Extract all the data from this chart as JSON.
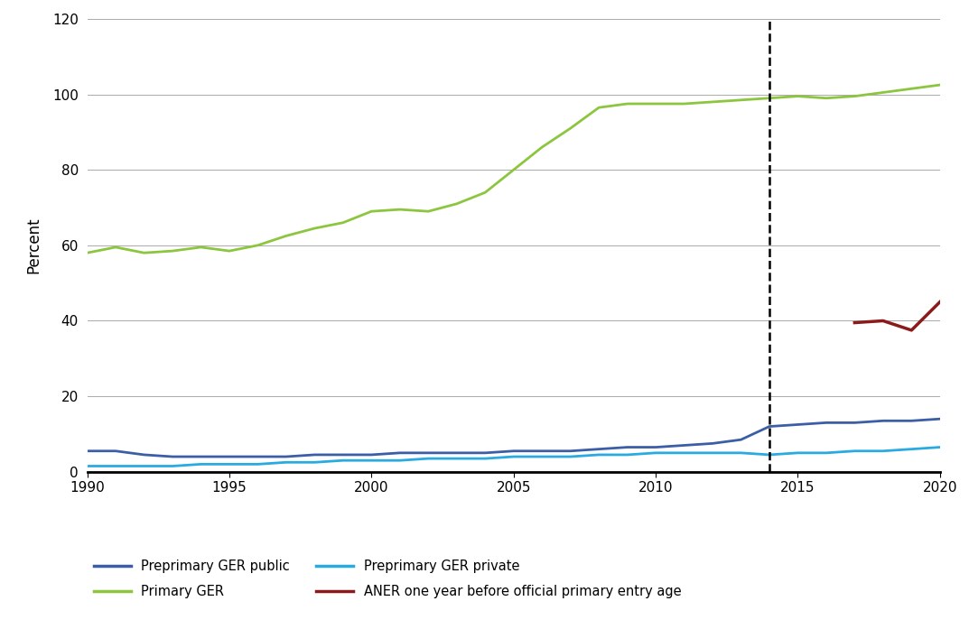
{
  "primary_ger": {
    "years": [
      1990,
      1991,
      1992,
      1993,
      1994,
      1995,
      1996,
      1997,
      1998,
      1999,
      2000,
      2001,
      2002,
      2003,
      2004,
      2005,
      2006,
      2007,
      2008,
      2009,
      2010,
      2011,
      2012,
      2013,
      2014,
      2015,
      2016,
      2017,
      2018,
      2019,
      2020
    ],
    "values": [
      58.0,
      59.5,
      58.0,
      58.5,
      59.5,
      58.5,
      60.0,
      62.5,
      64.5,
      66.0,
      69.0,
      69.5,
      69.0,
      71.0,
      74.0,
      80.0,
      86.0,
      91.0,
      96.5,
      97.5,
      97.5,
      97.5,
      98.0,
      98.5,
      99.0,
      99.5,
      99.0,
      99.5,
      100.5,
      101.5,
      102.5
    ],
    "color": "#8cc63f"
  },
  "preprimary_ger_public": {
    "years": [
      1990,
      1991,
      1992,
      1993,
      1994,
      1995,
      1996,
      1997,
      1998,
      1999,
      2000,
      2001,
      2002,
      2003,
      2004,
      2005,
      2006,
      2007,
      2008,
      2009,
      2010,
      2011,
      2012,
      2013,
      2014,
      2015,
      2016,
      2017,
      2018,
      2019,
      2020
    ],
    "values": [
      5.5,
      5.5,
      4.5,
      4.0,
      4.0,
      4.0,
      4.0,
      4.0,
      4.5,
      4.5,
      4.5,
      5.0,
      5.0,
      5.0,
      5.0,
      5.5,
      5.5,
      5.5,
      6.0,
      6.5,
      6.5,
      7.0,
      7.5,
      8.5,
      12.0,
      12.5,
      13.0,
      13.0,
      13.5,
      13.5,
      14.0
    ],
    "color": "#3b5ea6"
  },
  "preprimary_ger_private": {
    "years": [
      1990,
      1991,
      1992,
      1993,
      1994,
      1995,
      1996,
      1997,
      1998,
      1999,
      2000,
      2001,
      2002,
      2003,
      2004,
      2005,
      2006,
      2007,
      2008,
      2009,
      2010,
      2011,
      2012,
      2013,
      2014,
      2015,
      2016,
      2017,
      2018,
      2019,
      2020
    ],
    "values": [
      1.5,
      1.5,
      1.5,
      1.5,
      2.0,
      2.0,
      2.0,
      2.5,
      2.5,
      3.0,
      3.0,
      3.0,
      3.5,
      3.5,
      3.5,
      4.0,
      4.0,
      4.0,
      4.5,
      4.5,
      5.0,
      5.0,
      5.0,
      5.0,
      4.5,
      5.0,
      5.0,
      5.5,
      5.5,
      6.0,
      6.5
    ],
    "color": "#29abe2"
  },
  "aner": {
    "years": [
      2017,
      2018,
      2019,
      2020
    ],
    "values": [
      39.5,
      40.0,
      37.5,
      45.0
    ],
    "color": "#8b1a1a"
  },
  "dashed_line_x": 2014,
  "ylim": [
    0,
    120
  ],
  "xlim": [
    1990,
    2020
  ],
  "yticks": [
    0,
    20,
    40,
    60,
    80,
    100,
    120
  ],
  "xticks": [
    1990,
    1995,
    2000,
    2005,
    2010,
    2015,
    2020
  ],
  "ylabel": "Percent",
  "background_color": "#ffffff",
  "grid_color": "#aaaaaa",
  "line_width": 2.0,
  "legend_labels": [
    "Preprimary GER public",
    "Primary GER",
    "Preprimary GER private",
    "ANER one year before official primary entry age"
  ]
}
